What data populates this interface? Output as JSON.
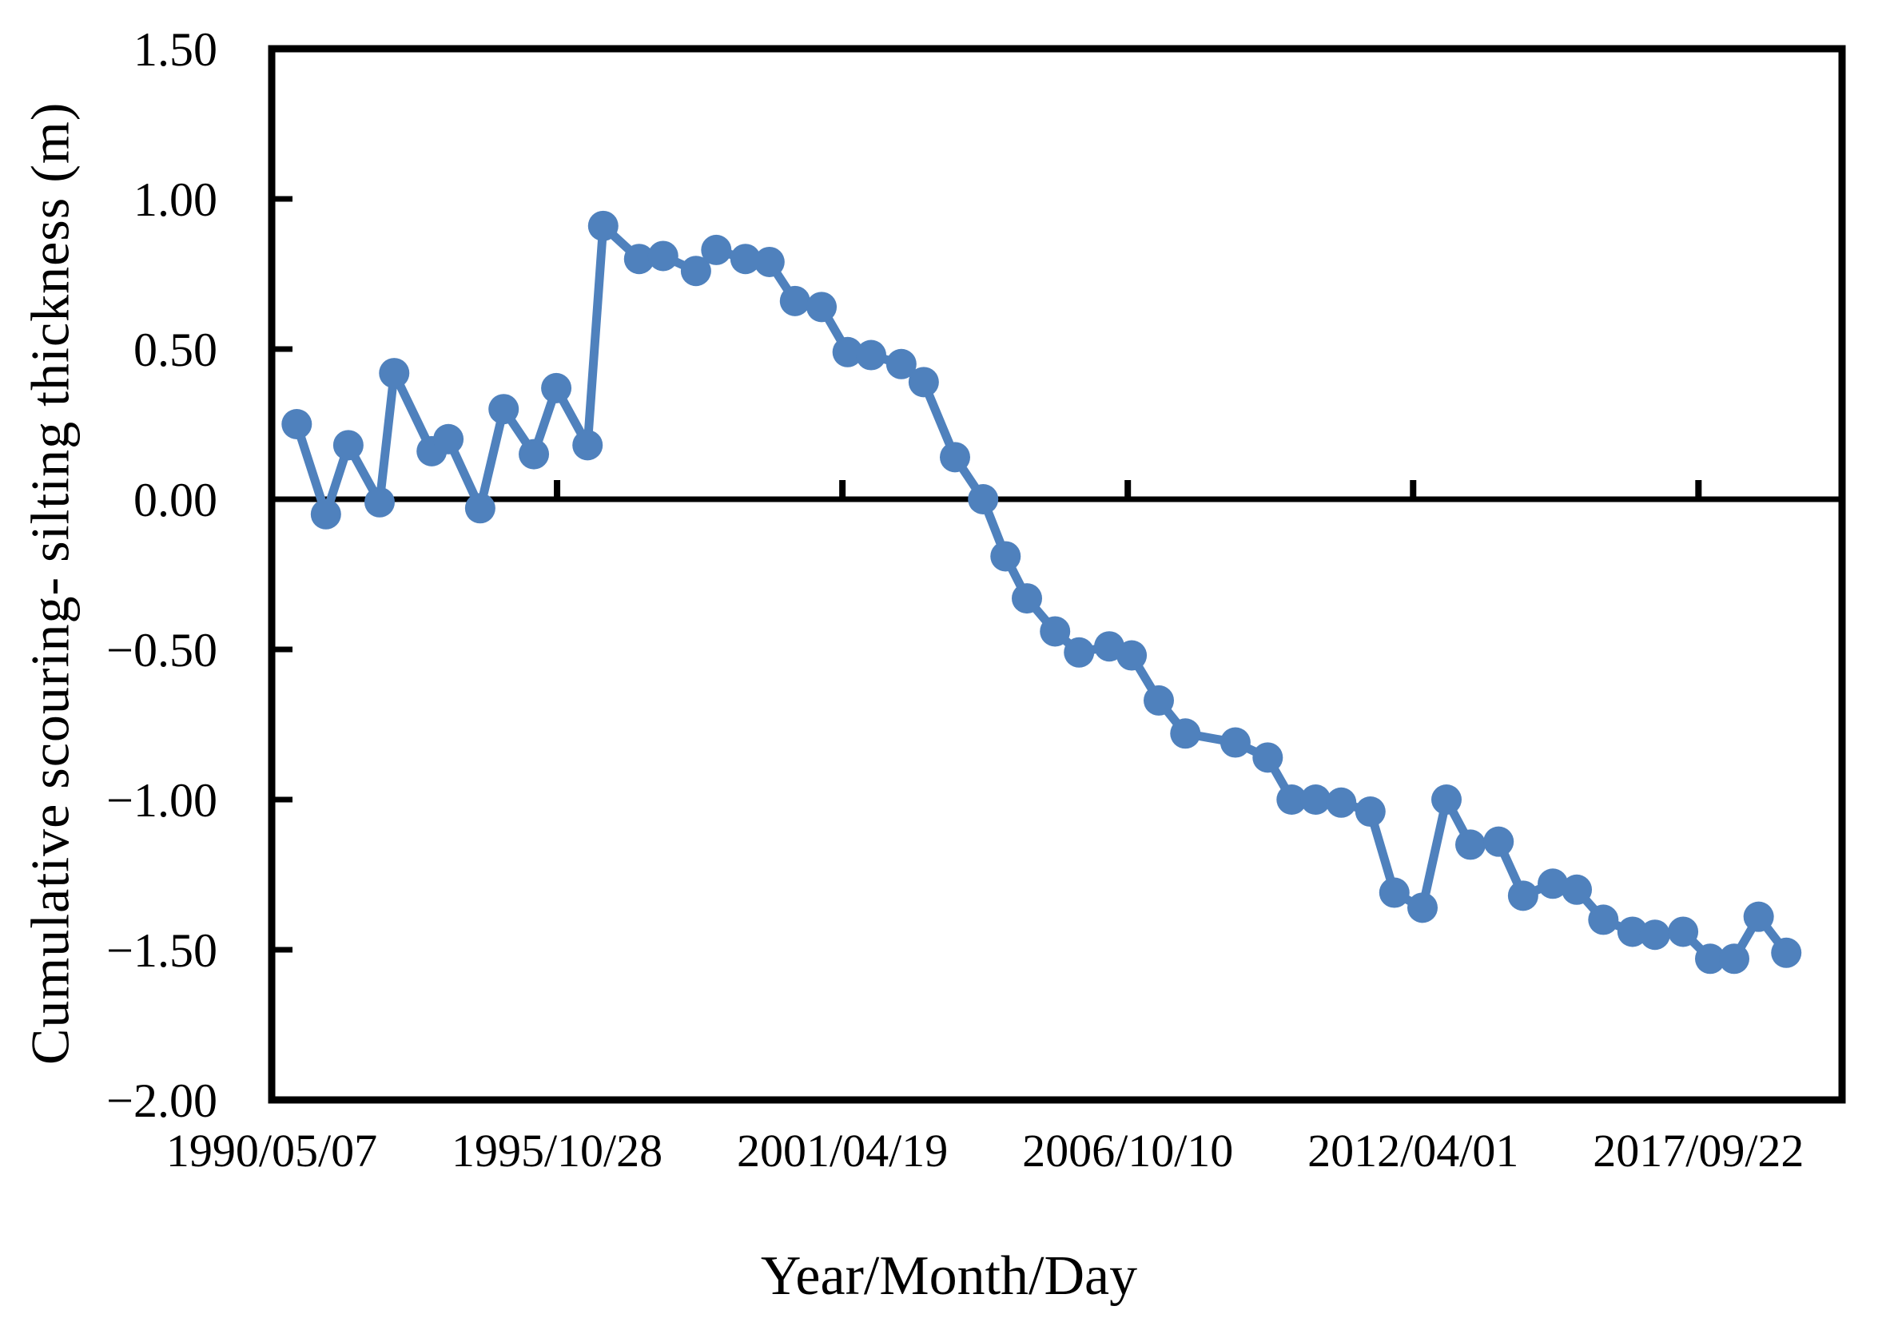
{
  "chart_data": {
    "type": "line",
    "title": "",
    "xlabel": "Year/Month/Day",
    "ylabel": "Cumulative scouring- silting thickness (m)",
    "legend_position": "none",
    "grid": false,
    "zero_line": true,
    "series_color": "#4F81BD",
    "axis_color": "#000000",
    "x_axis": {
      "range_years": [
        1990.35,
        2020.48
      ],
      "ticks": [
        {
          "label": "1990/05/07",
          "year": 1990.35
        },
        {
          "label": "1995/10/28",
          "year": 1995.825
        },
        {
          "label": "2001/04/19",
          "year": 2001.3
        },
        {
          "label": "2006/10/10",
          "year": 2006.775
        },
        {
          "label": "2012/04/01",
          "year": 2012.25
        },
        {
          "label": "2017/09/22",
          "year": 2017.725
        }
      ]
    },
    "y_axis": {
      "range": [
        -2.0,
        1.5
      ],
      "ticks": [
        {
          "label": "1.50",
          "value": 1.5
        },
        {
          "label": "1.00",
          "value": 1.0
        },
        {
          "label": "0.50",
          "value": 0.5
        },
        {
          "label": "0.00",
          "value": 0.0
        },
        {
          "label": "−0.50",
          "value": -0.5
        },
        {
          "label": "−1.00",
          "value": -1.0
        },
        {
          "label": "−1.50",
          "value": -1.5
        },
        {
          "label": "−2.00",
          "value": -2.0
        }
      ]
    },
    "series": [
      {
        "name": "cumulative-scouring-silting-thickness",
        "marker": "circle",
        "points": [
          [
            1990.83,
            0.25
          ],
          [
            1991.39,
            -0.05
          ],
          [
            1991.82,
            0.18
          ],
          [
            1992.42,
            -0.01
          ],
          [
            1992.7,
            0.42
          ],
          [
            1993.42,
            0.16
          ],
          [
            1993.74,
            0.2
          ],
          [
            1994.35,
            -0.03
          ],
          [
            1994.8,
            0.3
          ],
          [
            1995.38,
            0.15
          ],
          [
            1995.81,
            0.37
          ],
          [
            1996.41,
            0.18
          ],
          [
            1996.71,
            0.91
          ],
          [
            1997.4,
            0.8
          ],
          [
            1997.86,
            0.81
          ],
          [
            1998.49,
            0.76
          ],
          [
            1998.88,
            0.83
          ],
          [
            1999.44,
            0.8
          ],
          [
            1999.9,
            0.79
          ],
          [
            2000.39,
            0.66
          ],
          [
            2000.9,
            0.64
          ],
          [
            2001.4,
            0.49
          ],
          [
            2001.85,
            0.48
          ],
          [
            2002.43,
            0.45
          ],
          [
            2002.86,
            0.39
          ],
          [
            2003.46,
            0.14
          ],
          [
            2004.0,
            0.0
          ],
          [
            2004.43,
            -0.19
          ],
          [
            2004.84,
            -0.33
          ],
          [
            2005.38,
            -0.44
          ],
          [
            2005.84,
            -0.51
          ],
          [
            2006.42,
            -0.49
          ],
          [
            2006.85,
            -0.52
          ],
          [
            2007.37,
            -0.67
          ],
          [
            2007.88,
            -0.78
          ],
          [
            2008.84,
            -0.81
          ],
          [
            2009.46,
            -0.86
          ],
          [
            2009.92,
            -1.0
          ],
          [
            2010.38,
            -1.0
          ],
          [
            2010.87,
            -1.01
          ],
          [
            2011.43,
            -1.04
          ],
          [
            2011.89,
            -1.31
          ],
          [
            2012.43,
            -1.36
          ],
          [
            2012.89,
            -1.0
          ],
          [
            2013.35,
            -1.15
          ],
          [
            2013.89,
            -1.14
          ],
          [
            2014.36,
            -1.32
          ],
          [
            2014.93,
            -1.28
          ],
          [
            2015.39,
            -1.3
          ],
          [
            2015.9,
            -1.4
          ],
          [
            2016.46,
            -1.44
          ],
          [
            2016.89,
            -1.45
          ],
          [
            2017.43,
            -1.44
          ],
          [
            2017.95,
            -1.53
          ],
          [
            2018.41,
            -1.53
          ],
          [
            2018.88,
            -1.39
          ],
          [
            2019.41,
            -1.51
          ]
        ]
      }
    ]
  }
}
